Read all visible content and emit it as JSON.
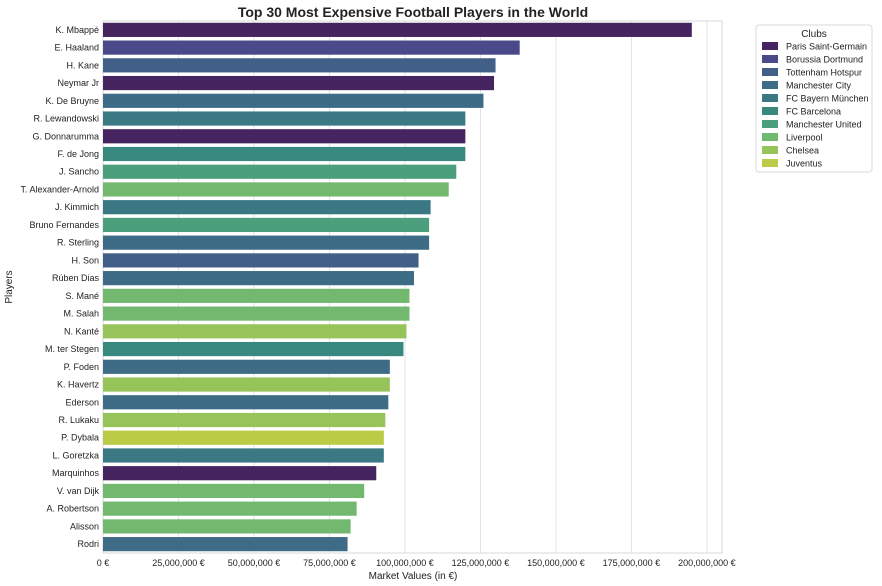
{
  "chart_data": {
    "type": "bar",
    "orientation": "horizontal",
    "title": "Top 30 Most Expensive Football Players in the World",
    "xlabel": "Market Values (in €)",
    "ylabel": "Players",
    "xlim": [
      0,
      205000000
    ],
    "xticks": [
      0,
      25000000,
      50000000,
      75000000,
      100000000,
      125000000,
      150000000,
      175000000,
      200000000
    ],
    "xtick_labels": [
      "0 €",
      "25,000,000 €",
      "50,000,000 €",
      "75,000,000 €",
      "100,000,000 €",
      "125,000,000 €",
      "150,000,000 €",
      "175,000,000 €",
      "200,000,000 €"
    ],
    "grid": "vertical",
    "legend": {
      "title": "Clubs",
      "placement": "outside-upper-right",
      "entries": [
        {
          "name": "Paris Saint-Germain",
          "color": "#45245f"
        },
        {
          "name": "Borussia Dortmund",
          "color": "#4a4a8a"
        },
        {
          "name": "Tottenham Hotspur",
          "color": "#425f88"
        },
        {
          "name": "Manchester City",
          "color": "#3e6b86"
        },
        {
          "name": "FC Bayern München",
          "color": "#3a7884"
        },
        {
          "name": "FC Barcelona",
          "color": "#38887f"
        },
        {
          "name": "Manchester United",
          "color": "#4c9f7d"
        },
        {
          "name": "Liverpool",
          "color": "#72b96f"
        },
        {
          "name": "Chelsea",
          "color": "#96c45a"
        },
        {
          "name": "Juventus",
          "color": "#bccb45"
        }
      ]
    },
    "players": [
      {
        "name": "K. Mbappé",
        "club": "Paris Saint-Germain",
        "value": 195000000
      },
      {
        "name": "E. Haaland",
        "club": "Borussia Dortmund",
        "value": 138000000
      },
      {
        "name": "H. Kane",
        "club": "Tottenham Hotspur",
        "value": 130000000
      },
      {
        "name": "Neymar Jr",
        "club": "Paris Saint-Germain",
        "value": 129500000
      },
      {
        "name": "K. De Bruyne",
        "club": "Manchester City",
        "value": 126000000
      },
      {
        "name": "R. Lewandowski",
        "club": "FC Bayern München",
        "value": 120000000
      },
      {
        "name": "G. Donnarumma",
        "club": "Paris Saint-Germain",
        "value": 120000000
      },
      {
        "name": "F. de Jong",
        "club": "FC Barcelona",
        "value": 120000000
      },
      {
        "name": "J. Sancho",
        "club": "Manchester United",
        "value": 117000000
      },
      {
        "name": "T. Alexander-Arnold",
        "club": "Liverpool",
        "value": 114500000
      },
      {
        "name": "J. Kimmich",
        "club": "FC Bayern München",
        "value": 108500000
      },
      {
        "name": "Bruno Fernandes",
        "club": "Manchester United",
        "value": 108000000
      },
      {
        "name": "R. Sterling",
        "club": "Manchester City",
        "value": 108000000
      },
      {
        "name": "H. Son",
        "club": "Tottenham Hotspur",
        "value": 104500000
      },
      {
        "name": "Rúben Dias",
        "club": "Manchester City",
        "value": 103000000
      },
      {
        "name": "S. Mané",
        "club": "Liverpool",
        "value": 101500000
      },
      {
        "name": "M. Salah",
        "club": "Liverpool",
        "value": 101500000
      },
      {
        "name": "N. Kanté",
        "club": "Chelsea",
        "value": 100500000
      },
      {
        "name": "M. ter Stegen",
        "club": "FC Barcelona",
        "value": 99500000
      },
      {
        "name": "P. Foden",
        "club": "Manchester City",
        "value": 95000000
      },
      {
        "name": "K. Havertz",
        "club": "Chelsea",
        "value": 95000000
      },
      {
        "name": "Ederson",
        "club": "Manchester City",
        "value": 94500000
      },
      {
        "name": "R. Lukaku",
        "club": "Chelsea",
        "value": 93500000
      },
      {
        "name": "P. Dybala",
        "club": "Juventus",
        "value": 93000000
      },
      {
        "name": "L. Goretzka",
        "club": "FC Bayern München",
        "value": 93000000
      },
      {
        "name": "Marquinhos",
        "club": "Paris Saint-Germain",
        "value": 90500000
      },
      {
        "name": "V. van Dijk",
        "club": "Liverpool",
        "value": 86500000
      },
      {
        "name": "A. Robertson",
        "club": "Liverpool",
        "value": 84000000
      },
      {
        "name": "Alisson",
        "club": "Liverpool",
        "value": 82000000
      },
      {
        "name": "Rodri",
        "club": "Manchester City",
        "value": 81000000
      }
    ]
  }
}
